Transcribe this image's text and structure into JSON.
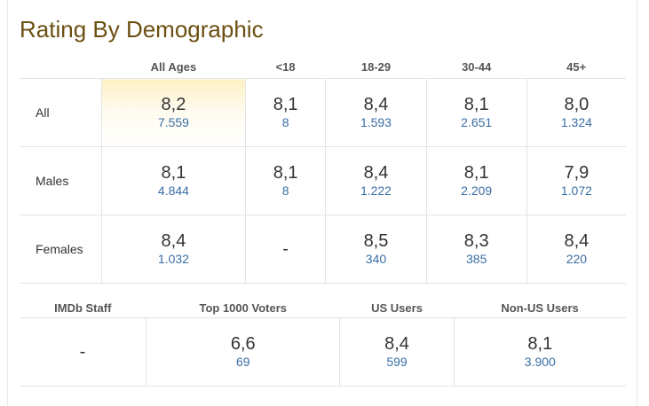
{
  "title": "Rating By Demographic",
  "demographic": {
    "columns": [
      "All Ages",
      "<18",
      "18-29",
      "30-44",
      "45+"
    ],
    "rows": [
      {
        "label": "All",
        "cells": [
          {
            "rating": "8,2",
            "votes": "7.559"
          },
          {
            "rating": "8,1",
            "votes": "8"
          },
          {
            "rating": "8,4",
            "votes": "1.593"
          },
          {
            "rating": "8,1",
            "votes": "2.651"
          },
          {
            "rating": "8,0",
            "votes": "1.324"
          }
        ]
      },
      {
        "label": "Males",
        "cells": [
          {
            "rating": "8,1",
            "votes": "4.844"
          },
          {
            "rating": "8,1",
            "votes": "8"
          },
          {
            "rating": "8,4",
            "votes": "1.222"
          },
          {
            "rating": "8,1",
            "votes": "2.209"
          },
          {
            "rating": "7,9",
            "votes": "1.072"
          }
        ]
      },
      {
        "label": "Females",
        "cells": [
          {
            "rating": "8,4",
            "votes": "1.032"
          },
          {
            "rating": "-",
            "votes": ""
          },
          {
            "rating": "8,5",
            "votes": "340"
          },
          {
            "rating": "8,3",
            "votes": "385"
          },
          {
            "rating": "8,4",
            "votes": "220"
          }
        ]
      }
    ]
  },
  "groups": {
    "columns": [
      "IMDb Staff",
      "Top 1000 Voters",
      "US Users",
      "Non-US Users"
    ],
    "cells": [
      {
        "rating": "-",
        "votes": ""
      },
      {
        "rating": "6,6",
        "votes": "69"
      },
      {
        "rating": "8,4",
        "votes": "599"
      },
      {
        "rating": "8,1",
        "votes": "3.900"
      }
    ]
  },
  "colors": {
    "title": "#6b4f10",
    "votes_link": "#3a6ea5",
    "highlight": "#fdf1c4"
  }
}
